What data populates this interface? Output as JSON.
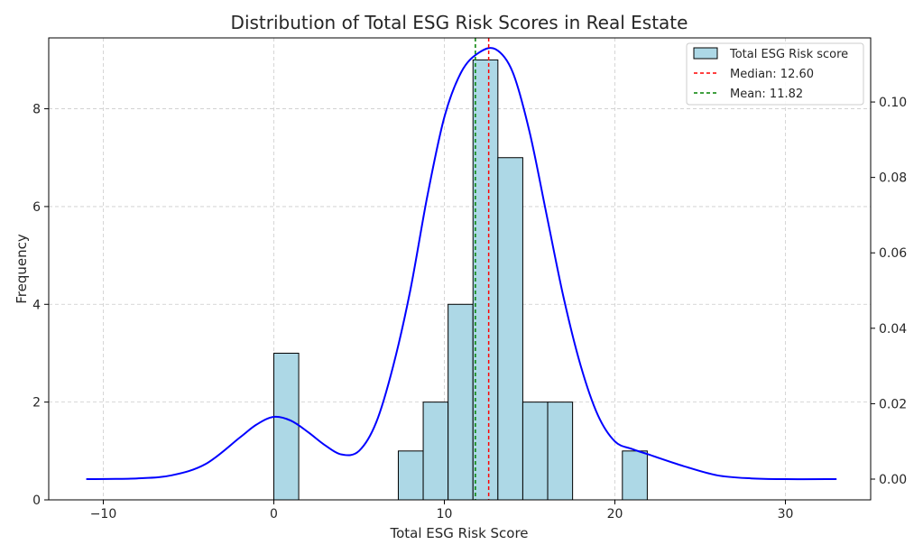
{
  "chart_data": {
    "type": "bar",
    "title": "Distribution of Total ESG Risk Scores in Real Estate",
    "xlabel": "Total ESG Risk Score",
    "ylabel": "Frequency",
    "xlim": [
      -13.2,
      35.0
    ],
    "ylim": [
      0,
      9.45
    ],
    "y2lim": [
      -0.0055,
      0.117
    ],
    "x_ticks": [
      -10,
      0,
      10,
      20,
      30
    ],
    "x_tick_labels": [
      "−10",
      "0",
      "10",
      "20",
      "30"
    ],
    "y_ticks": [
      0,
      2,
      4,
      6,
      8
    ],
    "y2_ticks": [
      0.0,
      0.02,
      0.04,
      0.06,
      0.08,
      0.1
    ],
    "y2_tick_labels": [
      "0.00",
      "0.02",
      "0.04",
      "0.06",
      "0.08",
      "0.10"
    ],
    "histogram": {
      "name": "Total ESG Risk score",
      "color": "#ADD8E6",
      "bins": [
        {
          "x0": 0.0,
          "x1": 1.46,
          "count": 3
        },
        {
          "x0": 7.3,
          "x1": 8.76,
          "count": 1
        },
        {
          "x0": 8.76,
          "x1": 10.22,
          "count": 2
        },
        {
          "x0": 10.22,
          "x1": 11.68,
          "count": 4
        },
        {
          "x0": 11.68,
          "x1": 13.14,
          "count": 9
        },
        {
          "x0": 13.14,
          "x1": 14.6,
          "count": 7
        },
        {
          "x0": 14.6,
          "x1": 16.06,
          "count": 2
        },
        {
          "x0": 16.06,
          "x1": 17.52,
          "count": 2
        },
        {
          "x0": 20.44,
          "x1": 21.9,
          "count": 1
        }
      ]
    },
    "kde": {
      "name": "KDE",
      "color": "#0000FF",
      "x": [
        -11,
        -8,
        -6,
        -4,
        -2,
        -1,
        0,
        1,
        2,
        3,
        4,
        5,
        6,
        7,
        8,
        9,
        10,
        11,
        12,
        13,
        14,
        15,
        16,
        17,
        18,
        19,
        20,
        21,
        22,
        24,
        26,
        28,
        30,
        33
      ],
      "y": [
        0.0,
        0.0002,
        0.001,
        0.004,
        0.011,
        0.0145,
        0.0165,
        0.0155,
        0.0125,
        0.009,
        0.0065,
        0.0075,
        0.015,
        0.03,
        0.05,
        0.075,
        0.096,
        0.108,
        0.113,
        0.114,
        0.108,
        0.092,
        0.07,
        0.048,
        0.03,
        0.017,
        0.01,
        0.008,
        0.0065,
        0.0035,
        0.001,
        0.0002,
        0.0,
        0.0
      ]
    },
    "vlines": [
      {
        "name": "Median: 12.60",
        "x": 12.6,
        "color": "#FF0000"
      },
      {
        "name": "Mean: 11.82",
        "x": 11.82,
        "color": "#008000"
      }
    ],
    "legend_position": "top-right",
    "grid": true
  }
}
